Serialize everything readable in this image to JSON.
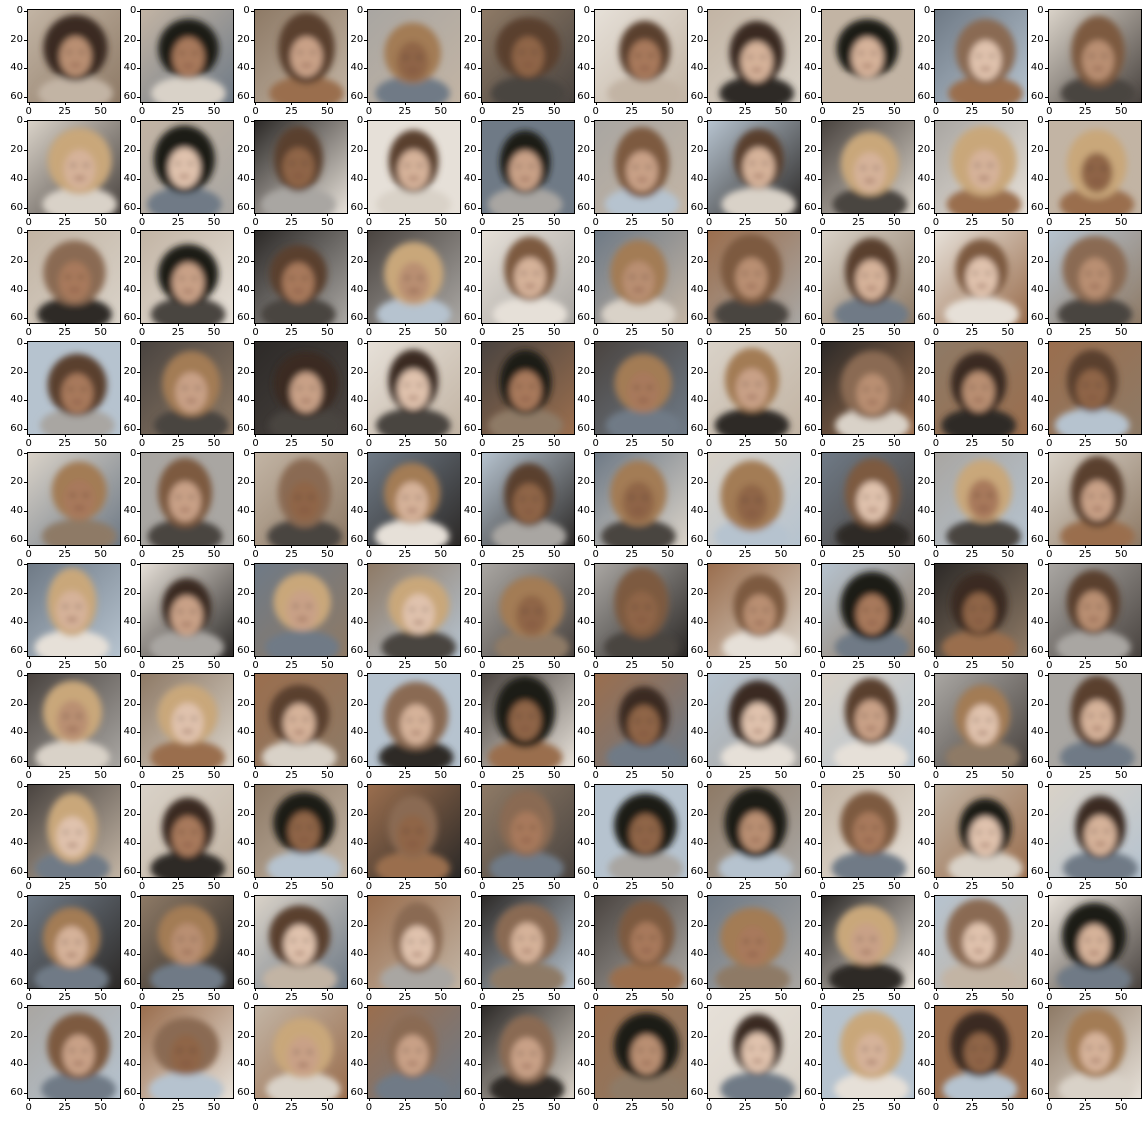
{
  "figure": {
    "rows": 10,
    "cols": 10,
    "x_ticks": [
      "0",
      "25",
      "50"
    ],
    "y_ticks": [
      "0",
      "20",
      "40",
      "60"
    ],
    "palette": {
      "skin": [
        "#c9a187",
        "#b98f72",
        "#d6b29a",
        "#a8795c",
        "#8f6547",
        "#e0c2ad"
      ],
      "hair": [
        "#3a2a22",
        "#5a3f2e",
        "#7d5a3f",
        "#a37c55",
        "#c9a77a",
        "#1f1a18",
        "#8a6a52"
      ],
      "bg": [
        "#d9d2c8",
        "#a9a6a2",
        "#6f7a86",
        "#4a4440",
        "#c2b4a4",
        "#8e7a66",
        "#2d2a28",
        "#b6c3cf",
        "#e6e0d8",
        "#9a6e4e"
      ]
    }
  }
}
